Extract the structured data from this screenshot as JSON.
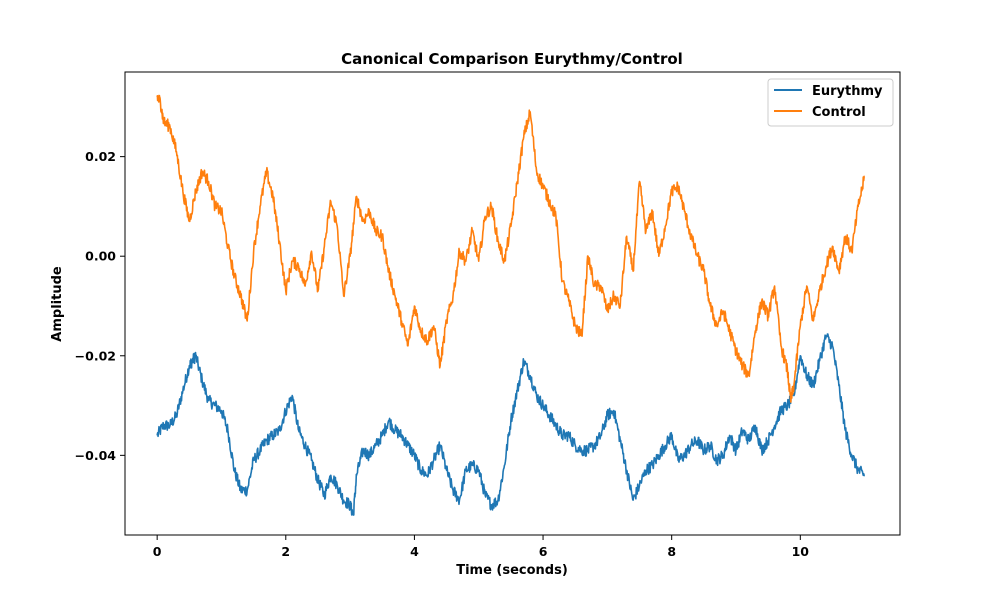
{
  "chart_data": {
    "type": "line",
    "title": "Canonical Comparison Eurythmy/Control",
    "xlabel": "Time (seconds)",
    "ylabel": "Amplitude",
    "xlim": [
      -0.5,
      11.55
    ],
    "ylim": [
      -0.056,
      0.037
    ],
    "xticks": [
      0,
      2,
      4,
      6,
      8,
      10
    ],
    "xtick_labels": [
      "0",
      "2",
      "4",
      "6",
      "8",
      "10"
    ],
    "yticks": [
      0.02,
      0.0,
      -0.02,
      -0.04
    ],
    "ytick_labels": [
      "0.02",
      "0.00",
      "−0.02",
      "−0.04"
    ],
    "grid": false,
    "legend_position": "top-right",
    "series": [
      {
        "name": "Eurythmy",
        "color": "#1f77b4",
        "x": [
          0.0,
          0.1,
          0.2,
          0.3,
          0.4,
          0.5,
          0.55,
          0.6,
          0.7,
          0.8,
          0.9,
          1.0,
          1.1,
          1.2,
          1.3,
          1.4,
          1.5,
          1.6,
          1.7,
          1.8,
          1.9,
          2.0,
          2.1,
          2.2,
          2.3,
          2.4,
          2.5,
          2.6,
          2.7,
          2.8,
          2.9,
          3.0,
          3.05,
          3.1,
          3.2,
          3.3,
          3.4,
          3.5,
          3.6,
          3.7,
          3.8,
          3.9,
          4.0,
          4.1,
          4.2,
          4.3,
          4.4,
          4.5,
          4.6,
          4.7,
          4.8,
          4.9,
          5.0,
          5.1,
          5.2,
          5.3,
          5.4,
          5.5,
          5.6,
          5.7,
          5.8,
          5.9,
          6.0,
          6.1,
          6.2,
          6.3,
          6.4,
          6.5,
          6.6,
          6.7,
          6.8,
          6.9,
          7.0,
          7.1,
          7.2,
          7.3,
          7.4,
          7.5,
          7.6,
          7.7,
          7.8,
          7.9,
          8.0,
          8.1,
          8.2,
          8.3,
          8.4,
          8.5,
          8.6,
          8.7,
          8.8,
          8.9,
          9.0,
          9.1,
          9.2,
          9.3,
          9.4,
          9.5,
          9.6,
          9.7,
          9.8,
          9.9,
          10.0,
          10.1,
          10.2,
          10.3,
          10.4,
          10.5,
          10.6,
          10.7,
          10.8,
          10.9,
          11.0
        ],
        "y": [
          -0.036,
          -0.034,
          -0.034,
          -0.032,
          -0.027,
          -0.022,
          -0.021,
          -0.02,
          -0.025,
          -0.029,
          -0.03,
          -0.031,
          -0.035,
          -0.043,
          -0.047,
          -0.047,
          -0.041,
          -0.039,
          -0.037,
          -0.036,
          -0.035,
          -0.031,
          -0.028,
          -0.035,
          -0.038,
          -0.041,
          -0.045,
          -0.048,
          -0.044,
          -0.046,
          -0.049,
          -0.05,
          -0.052,
          -0.044,
          -0.039,
          -0.04,
          -0.038,
          -0.036,
          -0.033,
          -0.035,
          -0.036,
          -0.038,
          -0.04,
          -0.043,
          -0.044,
          -0.041,
          -0.038,
          -0.043,
          -0.047,
          -0.049,
          -0.043,
          -0.042,
          -0.043,
          -0.048,
          -0.05,
          -0.049,
          -0.042,
          -0.033,
          -0.027,
          -0.021,
          -0.024,
          -0.028,
          -0.03,
          -0.032,
          -0.034,
          -0.036,
          -0.036,
          -0.038,
          -0.039,
          -0.039,
          -0.038,
          -0.036,
          -0.032,
          -0.031,
          -0.037,
          -0.043,
          -0.049,
          -0.046,
          -0.043,
          -0.042,
          -0.04,
          -0.038,
          -0.036,
          -0.041,
          -0.04,
          -0.038,
          -0.037,
          -0.039,
          -0.038,
          -0.041,
          -0.04,
          -0.036,
          -0.039,
          -0.035,
          -0.037,
          -0.034,
          -0.039,
          -0.037,
          -0.034,
          -0.031,
          -0.03,
          -0.028,
          -0.02,
          -0.024,
          -0.026,
          -0.021,
          -0.016,
          -0.018,
          -0.026,
          -0.035,
          -0.04,
          -0.043,
          -0.044
        ]
      },
      {
        "name": "Control",
        "color": "#ff7f0e",
        "x": [
          0.0,
          0.05,
          0.1,
          0.2,
          0.3,
          0.4,
          0.5,
          0.6,
          0.7,
          0.8,
          0.9,
          1.0,
          1.1,
          1.2,
          1.3,
          1.4,
          1.5,
          1.6,
          1.7,
          1.8,
          1.9,
          2.0,
          2.1,
          2.2,
          2.3,
          2.4,
          2.5,
          2.6,
          2.7,
          2.8,
          2.9,
          3.0,
          3.1,
          3.2,
          3.3,
          3.4,
          3.5,
          3.6,
          3.7,
          3.8,
          3.9,
          4.0,
          4.1,
          4.2,
          4.3,
          4.4,
          4.5,
          4.6,
          4.7,
          4.8,
          4.9,
          5.0,
          5.1,
          5.2,
          5.3,
          5.4,
          5.5,
          5.6,
          5.7,
          5.8,
          5.9,
          6.0,
          6.1,
          6.2,
          6.3,
          6.4,
          6.5,
          6.6,
          6.7,
          6.8,
          6.9,
          7.0,
          7.1,
          7.2,
          7.3,
          7.4,
          7.5,
          7.6,
          7.7,
          7.8,
          7.9,
          8.0,
          8.1,
          8.2,
          8.3,
          8.4,
          8.5,
          8.6,
          8.7,
          8.8,
          8.9,
          9.0,
          9.1,
          9.2,
          9.3,
          9.4,
          9.5,
          9.6,
          9.7,
          9.8,
          9.85,
          9.9,
          10.0,
          10.1,
          10.2,
          10.3,
          10.4,
          10.5,
          10.6,
          10.7,
          10.8,
          10.9,
          11.0
        ],
        "y": [
          0.032,
          0.031,
          0.027,
          0.026,
          0.021,
          0.013,
          0.007,
          0.013,
          0.017,
          0.015,
          0.01,
          0.009,
          0.002,
          -0.004,
          -0.008,
          -0.013,
          0.001,
          0.01,
          0.017,
          0.012,
          0.003,
          -0.007,
          -0.001,
          -0.002,
          -0.006,
          0.001,
          -0.007,
          0.002,
          0.011,
          0.006,
          -0.008,
          0.0,
          0.012,
          0.007,
          0.009,
          0.005,
          0.004,
          -0.003,
          -0.008,
          -0.013,
          -0.018,
          -0.01,
          -0.015,
          -0.017,
          -0.014,
          -0.022,
          -0.013,
          -0.008,
          0.001,
          -0.001,
          0.005,
          -0.001,
          0.008,
          0.01,
          0.003,
          -0.001,
          0.006,
          0.015,
          0.024,
          0.029,
          0.017,
          0.014,
          0.011,
          0.008,
          -0.005,
          -0.009,
          -0.014,
          -0.016,
          0.0,
          -0.006,
          -0.006,
          -0.011,
          -0.008,
          -0.01,
          0.004,
          -0.003,
          0.015,
          0.005,
          0.009,
          0.0,
          0.006,
          0.013,
          0.014,
          0.009,
          0.004,
          0.0,
          -0.003,
          -0.01,
          -0.014,
          -0.011,
          -0.015,
          -0.019,
          -0.022,
          -0.024,
          -0.015,
          -0.009,
          -0.012,
          -0.006,
          -0.018,
          -0.023,
          -0.029,
          -0.026,
          -0.014,
          -0.006,
          -0.013,
          -0.007,
          -0.002,
          0.002,
          -0.003,
          0.004,
          0.001,
          0.01,
          0.016
        ]
      }
    ]
  }
}
